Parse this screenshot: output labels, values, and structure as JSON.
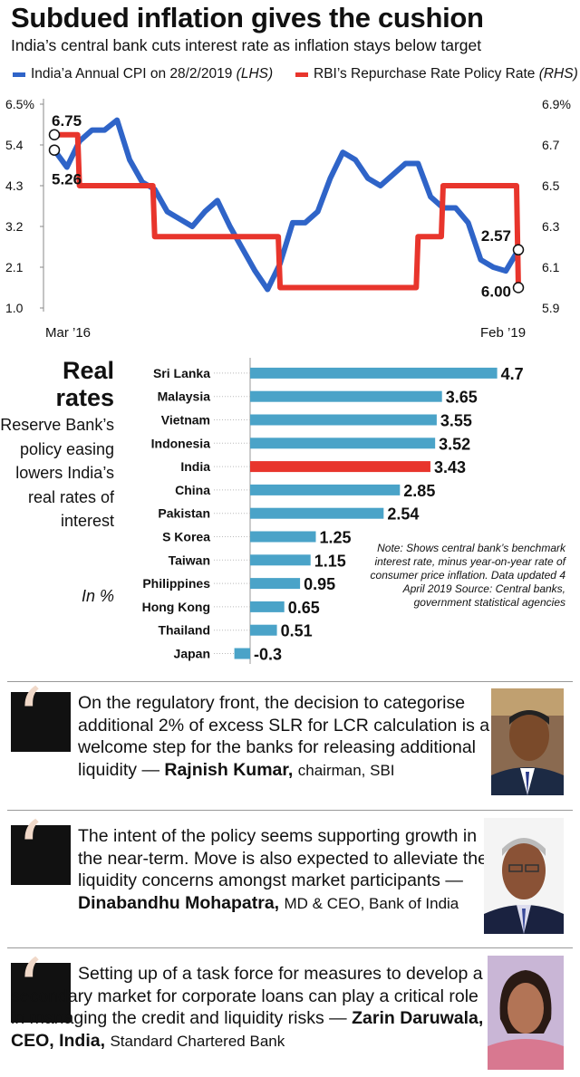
{
  "header": {
    "title": "Subdued inflation gives the cushion",
    "subtitle": "India’s central bank cuts interest rate as inflation stays below target"
  },
  "legend": {
    "cpi_label": "India’a Annual CPI on 28/2/2019",
    "cpi_axis": "(LHS)",
    "repo_label": "RBI’s Repurchase Rate Policy Rate",
    "repo_axis": "(RHS)"
  },
  "colors": {
    "cpi": "#2f64c8",
    "repo": "#e8352c",
    "bar": "#4aa3c8",
    "bar_highlight": "#e8352c"
  },
  "chart_data": [
    {
      "type": "line",
      "x_start_label": "Mar ’16",
      "x_end_label": "Feb ’19",
      "left_axis": {
        "ticks": [
          "6.5%",
          "5.4",
          "4.3",
          "3.2",
          "2.1",
          "1.0"
        ],
        "ylim": [
          1.0,
          6.5
        ]
      },
      "right_axis": {
        "ticks": [
          "6.9%",
          "6.7",
          "6.5",
          "6.3",
          "6.1",
          "5.9"
        ],
        "ylim": [
          5.9,
          6.9
        ]
      },
      "series": [
        {
          "axis": "left",
          "values": [
            5.26,
            4.8,
            5.5,
            5.8,
            5.8,
            6.07,
            5.0,
            4.4,
            4.2,
            3.6,
            3.4,
            3.2,
            3.6,
            3.9,
            3.2,
            2.6,
            2.0,
            1.5,
            2.2,
            3.3,
            3.3,
            3.6,
            4.5,
            5.2,
            5.0,
            4.5,
            4.3,
            4.6,
            4.9,
            4.9,
            4.0,
            3.7,
            3.7,
            3.3,
            2.3,
            2.1,
            2.0,
            2.57
          ]
        },
        {
          "axis": "right",
          "values": [
            6.75,
            6.75,
            6.5,
            6.5,
            6.5,
            6.5,
            6.5,
            6.5,
            6.25,
            6.25,
            6.25,
            6.25,
            6.25,
            6.25,
            6.25,
            6.25,
            6.25,
            6.25,
            6.0,
            6.0,
            6.0,
            6.0,
            6.0,
            6.0,
            6.0,
            6.0,
            6.0,
            6.0,
            6.0,
            6.25,
            6.25,
            6.5,
            6.5,
            6.5,
            6.5,
            6.5,
            6.5,
            6.0
          ]
        }
      ],
      "annotations": [
        {
          "label": "6.75",
          "series": 1,
          "index": 0
        },
        {
          "label": "5.26",
          "series": 0,
          "index": 0
        },
        {
          "label": "2.57",
          "series": 0,
          "index": 37
        },
        {
          "label": "6.00",
          "series": 1,
          "index": 37
        }
      ]
    },
    {
      "type": "bar",
      "title": "Real rates",
      "description": "Reserve Bank’s policy easing lowers India’s real rates of interest",
      "unit": "In %",
      "categories": [
        "Sri Lanka",
        "Malaysia",
        "Vietnam",
        "Indonesia",
        "India",
        "China",
        "Pakistan",
        "S Korea",
        "Taiwan",
        "Philippines",
        "Hong Kong",
        "Thailand",
        "Japan"
      ],
      "values": [
        4.7,
        3.65,
        3.55,
        3.52,
        3.43,
        2.85,
        2.54,
        1.25,
        1.15,
        0.95,
        0.65,
        0.51,
        -0.3
      ],
      "value_labels": [
        "4.7",
        "3.65",
        "3.55",
        "3.52",
        "3.43",
        "2.85",
        "2.54",
        "1.25",
        "1.15",
        "0.95",
        "0.65",
        "0.51",
        "-0.3"
      ],
      "highlight": "India",
      "note": "Note: Shows central bank’s benchmark interest rate, minus year-on-year rate of consumer price inflation. Data updated 4 April 2019 Source: Central banks, government statistical agencies"
    }
  ],
  "quotes": [
    {
      "text": "On the regulatory front, the decision to categorise additional 2% of excess SLR for LCR calculation is a welcome step for the banks for releasing additional liquidity —",
      "name": "Rajnish Kumar,",
      "role": "chairman, SBI"
    },
    {
      "text": "The intent of the policy seems supporting growth in the near-term. Move is also expected to alleviate the liquidity concerns amongst market participants —",
      "name": "Dinabandhu Mohapatra,",
      "role": "MD & CEO, Bank of India"
    },
    {
      "text": "Setting up of a task force for measures to develop a secondary market for corporate loans can play a critical role in managing the credit and liquidity risks —",
      "name": "Zarin Daruwala, CEO, India,",
      "role": "Standard Chartered Bank"
    }
  ]
}
